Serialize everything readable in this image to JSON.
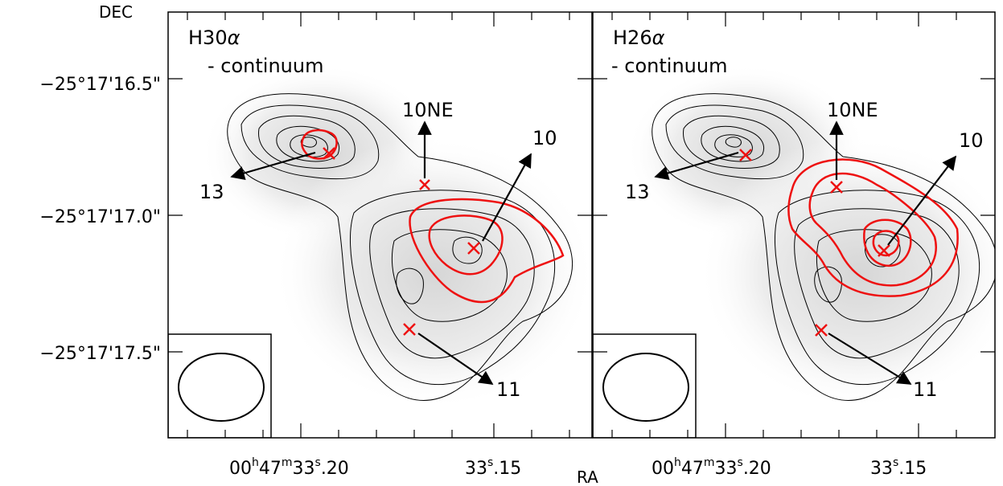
{
  "axes": {
    "dec_label": "DEC",
    "ra_label": "RA",
    "dec_ticks": [
      "−25°17'16.5\"",
      "−25°17'17.0\"",
      "−25°17'17.5\""
    ],
    "ra_ticks": [
      {
        "base": "00",
        "h": "h",
        "mid": "47",
        "m": "m",
        "sec": "33",
        "s": "s",
        "frac": ".20"
      },
      {
        "base": "",
        "h": "",
        "mid": "",
        "m": "",
        "sec": "33",
        "s": "s",
        "frac": ".15"
      }
    ]
  },
  "panels": [
    {
      "line": "H30",
      "greek": "α",
      "subtitle": "- continuum",
      "sources": [
        "13",
        "10NE",
        "10",
        "11"
      ]
    },
    {
      "line": "H26",
      "greek": "α",
      "subtitle": "- continuum",
      "sources": [
        "13",
        "10NE",
        "10",
        "11"
      ]
    }
  ],
  "colors": {
    "contour": "#000000",
    "line_emission": "#ee1111",
    "marker": "#ee1111",
    "frame": "#000000"
  }
}
